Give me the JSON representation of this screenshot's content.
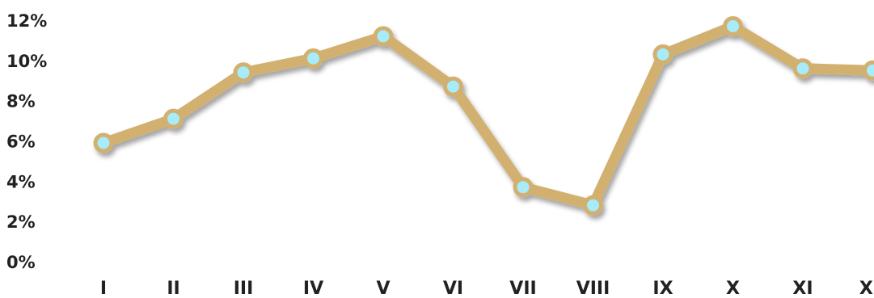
{
  "chart_data": {
    "type": "line",
    "title": "",
    "xlabel": "",
    "ylabel": "",
    "categories": [
      "I",
      "II",
      "III",
      "IV",
      "V",
      "VI",
      "VII",
      "VIII",
      "IX",
      "X",
      "XI",
      "XII"
    ],
    "series": [
      {
        "values": [
          5.9,
          7.1,
          9.4,
          10.1,
          11.2,
          8.7,
          3.7,
          2.8,
          10.3,
          11.7,
          9.6,
          9.5
        ]
      }
    ],
    "ylim": [
      0,
      12
    ],
    "yticks": [
      0,
      2,
      4,
      6,
      8,
      10,
      12
    ],
    "ytick_labels": [
      "0%",
      "2%",
      "4%",
      "6%",
      "8%",
      "10%",
      "12%"
    ],
    "grid": false,
    "legend": "none",
    "colors": {
      "line": "#d2b06f",
      "marker_fill": "#a6ecfb",
      "marker_stroke": "#d2b06f",
      "text": "#222222"
    }
  }
}
